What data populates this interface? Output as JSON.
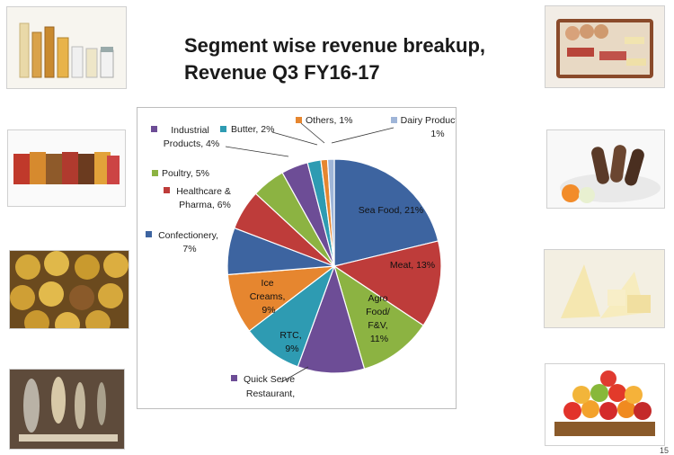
{
  "title": {
    "line1": "Segment wise revenue breakup,",
    "line2": "Revenue Q3 FY16-17"
  },
  "photos": {
    "left": [
      "medicine vials and bottles",
      "packaged ready-to-cook food packets",
      "gold-wrapped chocolates",
      "dried fish"
    ],
    "right": [
      "platter of crackers and meats",
      "chocolate ice cream bars",
      "cheese wedges",
      "tray of fresh fruit"
    ]
  },
  "page_number": "15",
  "chart_data": {
    "type": "pie",
    "title": "Segment wise revenue breakup, Revenue Q3 FY16-17",
    "slices": [
      {
        "label": "Sea Food",
        "value": 21,
        "color": "#3d64a0"
      },
      {
        "label": "Meat",
        "value": 13,
        "color": "#be3c3a"
      },
      {
        "label": "Agro Food/ F&V",
        "value": 11,
        "color": "#8cb342"
      },
      {
        "label": "Quick Serve Restaurant",
        "value": 10,
        "color": "#6d4d96"
      },
      {
        "label": "RTC",
        "value": 9,
        "color": "#2e9bb2"
      },
      {
        "label": "Ice Creams",
        "value": 9,
        "color": "#e6862f"
      },
      {
        "label": "Confectionery",
        "value": 7,
        "color": "#3d64a0"
      },
      {
        "label": "Healthcare & Pharma",
        "value": 6,
        "color": "#be3c3a"
      },
      {
        "label": "Poultry",
        "value": 5,
        "color": "#8cb342"
      },
      {
        "label": "Industrial Products",
        "value": 4,
        "color": "#6d4d96"
      },
      {
        "label": "Butter",
        "value": 2,
        "color": "#2e9bb2"
      },
      {
        "label": "Others",
        "value": 1,
        "color": "#e6862f"
      },
      {
        "label": "Dairy Products",
        "value": 1,
        "color": "#9fb5d8"
      }
    ],
    "data_labels": {
      "sea_food": "Sea Food, 21%",
      "meat": "Meat, 13%",
      "agro": [
        "Agro",
        "Food/",
        "F&V,",
        "11%"
      ],
      "qsr": [
        "Quick Serve",
        "Restaurant,"
      ],
      "rtc": [
        "RTC,",
        "9%"
      ],
      "ice": [
        "Ice",
        "Creams,",
        "9%"
      ],
      "confectionery": [
        "Confectionery,",
        "7%"
      ],
      "healthcare": [
        "Healthcare &",
        "Pharma, 6%"
      ],
      "poultry": "Poultry, 5%",
      "industrial": [
        "Industrial",
        "Products, 4%"
      ],
      "butter": "Butter, 2%",
      "others": "Others, 1%",
      "dairy": [
        "Dairy Products,",
        "1%"
      ]
    }
  }
}
